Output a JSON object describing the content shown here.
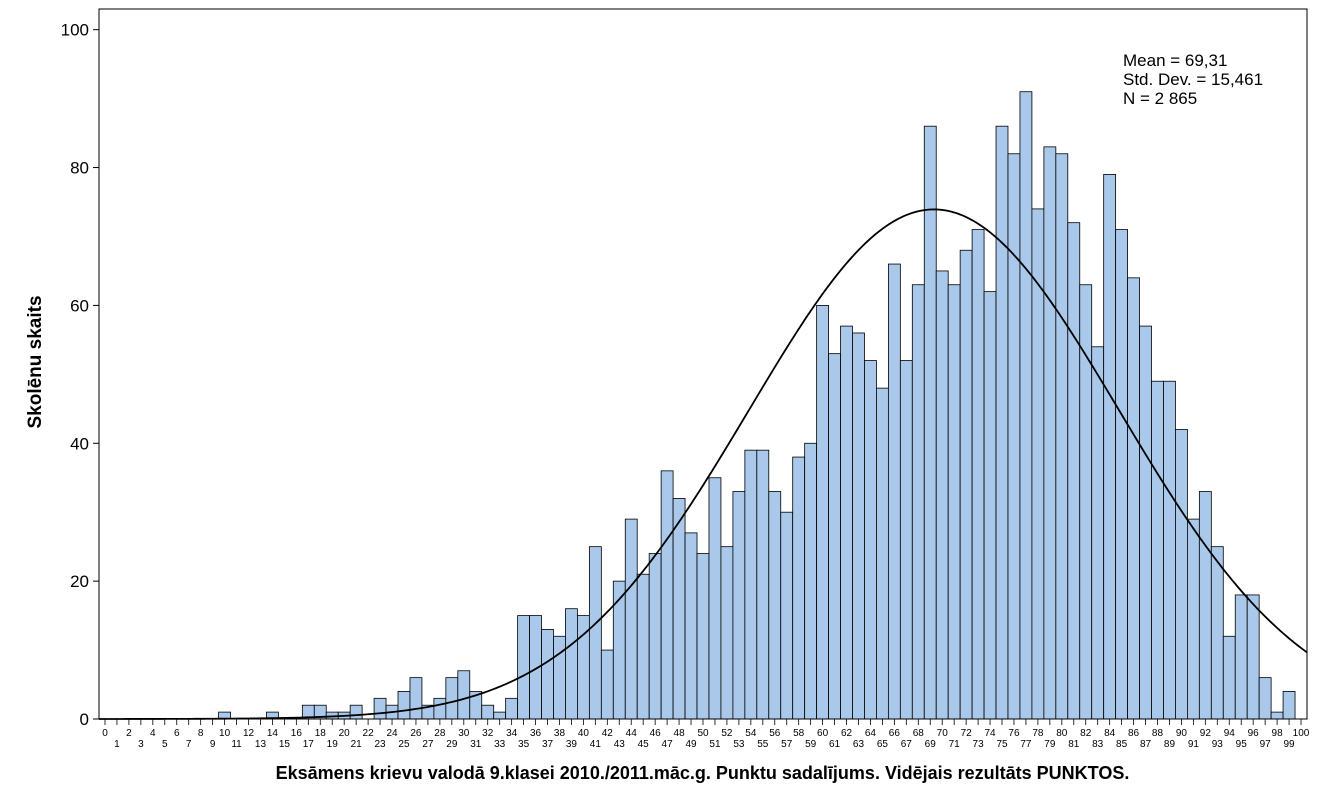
{
  "chart_data": {
    "type": "bar",
    "title": "",
    "xlabel": "Eksāmens krievu valodā 9.klasei 2010./2011.māc.g. Punktu sadalījums. Vidējais rezultāts PUNKTOS.",
    "ylabel": "Skolēnu skaits",
    "ylim": [
      0,
      103
    ],
    "y_ticks": [
      0,
      20,
      40,
      60,
      80,
      100
    ],
    "x_ticks": [
      "0",
      "1",
      "2",
      "3",
      "4",
      "5",
      "6",
      "7",
      "8",
      "9",
      "10",
      "11",
      "12",
      "13",
      "14",
      "15",
      "16",
      "17",
      "18",
      "19",
      "20",
      "21",
      "22",
      "23",
      "24",
      "25",
      "26",
      "27",
      "28",
      "29",
      "30",
      "31",
      "32",
      "33",
      "34",
      "35",
      "36",
      "37",
      "38",
      "39",
      "40",
      "41",
      "42",
      "43",
      "44",
      "45",
      "46",
      "47",
      "48",
      "49",
      "50",
      "51",
      "52",
      "53",
      "54",
      "55",
      "56",
      "57",
      "58",
      "59",
      "60",
      "61",
      "62",
      "63",
      "64",
      "65",
      "66",
      "67",
      "68",
      "69",
      "70",
      "71",
      "72",
      "73",
      "74",
      "75",
      "76",
      "77",
      "78",
      "79",
      "80",
      "81",
      "82",
      "83",
      "84",
      "85",
      "86",
      "87",
      "88",
      "89",
      "90",
      "91",
      "92",
      "93",
      "94",
      "95",
      "96",
      "97",
      "98",
      "99",
      "100"
    ],
    "values": [
      0,
      0,
      0,
      0,
      0,
      0,
      0,
      0,
      0,
      0,
      1,
      0,
      0,
      0,
      1,
      0,
      0,
      2,
      2,
      1,
      1,
      2,
      0,
      3,
      2,
      4,
      6,
      2,
      3,
      6,
      7,
      4,
      2,
      1,
      3,
      15,
      15,
      13,
      12,
      16,
      15,
      25,
      10,
      20,
      29,
      21,
      24,
      36,
      32,
      27,
      24,
      35,
      25,
      33,
      39,
      39,
      33,
      30,
      38,
      40,
      60,
      53,
      57,
      56,
      52,
      48,
      66,
      52,
      63,
      86,
      65,
      63,
      68,
      71,
      62,
      86,
      82,
      91,
      74,
      83,
      82,
      72,
      63,
      54,
      79,
      71,
      64,
      57,
      49,
      49,
      42,
      29,
      33,
      25,
      12,
      18,
      18,
      6,
      1,
      4,
      0
    ],
    "bar_color": "#a9c8ea",
    "normal_curve": {
      "mean": 69.31,
      "std_dev": 15.461,
      "n": 2865,
      "color": "#000000"
    },
    "grid": false,
    "stats_box": {
      "position": "top-right",
      "lines": [
        "Mean = 69,31",
        "Std. Dev. = 15,461",
        "N = 2 865"
      ]
    }
  }
}
